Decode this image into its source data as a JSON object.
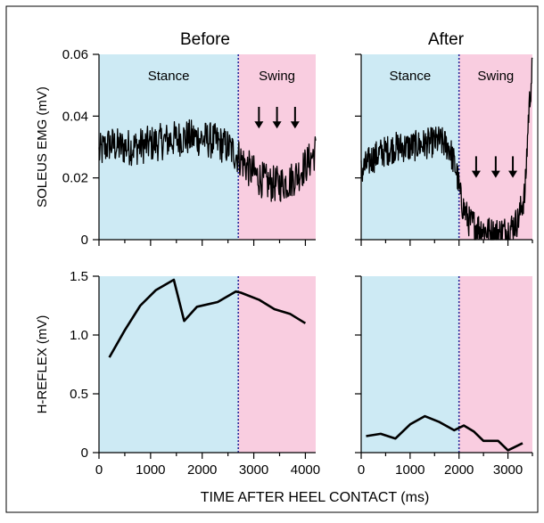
{
  "colors": {
    "stance": "#cdeaf4",
    "swing": "#f9cde0",
    "trace": "#000000",
    "divider": "#2b2b9a",
    "frame": "#000000"
  },
  "chart_data": [
    {
      "id": "emg-before",
      "type": "line",
      "title": "Before",
      "ylabel": "SOLEUS EMG (mV)",
      "xlim": [
        0,
        4200
      ],
      "ylim": [
        0,
        0.06
      ],
      "yticks": [
        "0",
        "0.02",
        "0.04",
        "0.06"
      ],
      "phases": [
        {
          "label": "Stance",
          "from": 0,
          "to": 2700
        },
        {
          "label": "Swing",
          "from": 2700,
          "to": 4200
        }
      ],
      "divider_x": 2700,
      "arrows_x": [
        3100,
        3450,
        3800
      ],
      "arrow_y_top": 0.043,
      "arrow_y_bottom": 0.036,
      "series": [
        {
          "name": "",
          "noise": 0.006,
          "x": [
            0,
            200,
            400,
            700,
            1000,
            1300,
            1600,
            1900,
            2200,
            2500,
            2700,
            2900,
            3100,
            3300,
            3500,
            3700,
            3900,
            4100,
            4200
          ],
          "y": [
            0.028,
            0.031,
            0.03,
            0.03,
            0.031,
            0.032,
            0.033,
            0.033,
            0.032,
            0.03,
            0.027,
            0.023,
            0.02,
            0.018,
            0.018,
            0.019,
            0.022,
            0.026,
            0.029
          ]
        }
      ]
    },
    {
      "id": "emg-after",
      "type": "line",
      "title": "After",
      "xlim": [
        0,
        3500
      ],
      "ylim": [
        0,
        0.06
      ],
      "phases": [
        {
          "label": "Stance",
          "from": 0,
          "to": 2000
        },
        {
          "label": "Swing",
          "from": 2000,
          "to": 3500
        }
      ],
      "divider_x": 2000,
      "arrows_x": [
        2350,
        2750,
        3100
      ],
      "arrow_y_top": 0.027,
      "arrow_y_bottom": 0.02,
      "series": [
        {
          "name": "",
          "noise": 0.005,
          "x": [
            0,
            200,
            400,
            700,
            1000,
            1300,
            1600,
            1800,
            1950,
            2050,
            2200,
            2400,
            2700,
            3000,
            3200,
            3350,
            3420,
            3500
          ],
          "y": [
            0.022,
            0.026,
            0.028,
            0.03,
            0.03,
            0.031,
            0.032,
            0.03,
            0.022,
            0.012,
            0.006,
            0.004,
            0.002,
            0.003,
            0.006,
            0.015,
            0.04,
            0.056
          ]
        }
      ]
    },
    {
      "id": "h-reflex-before",
      "type": "line",
      "ylabel": "H-REFLEX (mV)",
      "xlim": [
        0,
        4200
      ],
      "ylim": [
        0,
        1.5
      ],
      "xticks": [
        "0",
        "1000",
        "2000",
        "3000",
        "4000"
      ],
      "yticks": [
        "0",
        "0.5",
        "1.0",
        "1.5"
      ],
      "phases": [
        {
          "label": "",
          "from": 0,
          "to": 2700
        },
        {
          "label": "",
          "from": 2700,
          "to": 4200
        }
      ],
      "divider_x": 2700,
      "series": [
        {
          "name": "",
          "x": [
            200,
            500,
            800,
            1100,
            1450,
            1650,
            1900,
            2300,
            2650,
            2750,
            3100,
            3400,
            3700,
            4000
          ],
          "y": [
            0.81,
            1.04,
            1.25,
            1.38,
            1.47,
            1.12,
            1.24,
            1.28,
            1.37,
            1.36,
            1.3,
            1.22,
            1.18,
            1.1
          ]
        }
      ]
    },
    {
      "id": "h-reflex-after",
      "type": "line",
      "xlim": [
        0,
        3500
      ],
      "ylim": [
        0,
        1.5
      ],
      "xticks": [
        "0",
        "1000",
        "2000",
        "3000"
      ],
      "phases": [
        {
          "label": "",
          "from": 0,
          "to": 2000
        },
        {
          "label": "",
          "from": 2000,
          "to": 3500
        }
      ],
      "divider_x": 2000,
      "series": [
        {
          "name": "",
          "x": [
            100,
            400,
            700,
            1000,
            1300,
            1600,
            1900,
            2100,
            2300,
            2500,
            2800,
            3000,
            3300
          ],
          "y": [
            0.14,
            0.16,
            0.12,
            0.24,
            0.31,
            0.26,
            0.19,
            0.23,
            0.18,
            0.1,
            0.1,
            0.02,
            0.08
          ]
        }
      ]
    }
  ],
  "xlabel": "TIME AFTER HEEL CONTACT (ms)"
}
